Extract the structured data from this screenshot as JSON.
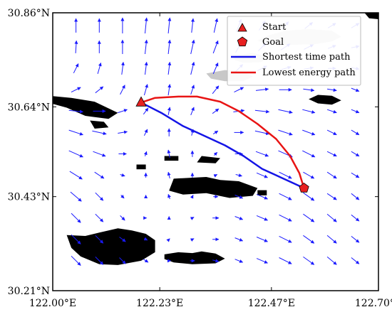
{
  "chart_data": {
    "type": "map",
    "xlim": [
      122.0,
      122.7
    ],
    "ylim": [
      30.21,
      30.86
    ],
    "x_ticks": [
      122.0,
      122.23,
      122.47,
      122.7
    ],
    "x_tick_labels": [
      "122.00°E",
      "122.23°E",
      "122.47°E",
      "122.70°E"
    ],
    "y_ticks": [
      30.21,
      30.43,
      30.64,
      30.86
    ],
    "y_tick_labels": [
      "30.21°N",
      "30.43°N",
      "30.64°N",
      "30.86°N"
    ],
    "legend_position": "top-right",
    "start": {
      "label": "Start",
      "lon": 122.19,
      "lat": 30.65,
      "marker": "triangle",
      "color": "#e82020"
    },
    "goal": {
      "label": "Goal",
      "lon": 122.54,
      "lat": 30.45,
      "marker": "pentagon",
      "color": "#e82020"
    },
    "series": [
      {
        "name": "Shortest time path",
        "color": "#1414e6",
        "lon": [
          122.19,
          122.235,
          122.28,
          122.32,
          122.37,
          122.41,
          122.45,
          122.49,
          122.54
        ],
        "lat": [
          30.65,
          30.625,
          30.595,
          30.575,
          30.55,
          30.525,
          30.495,
          30.475,
          30.45
        ]
      },
      {
        "name": "Lowest energy path",
        "color": "#e81414",
        "lon": [
          122.19,
          122.22,
          122.27,
          122.31,
          122.36,
          122.4,
          122.44,
          122.48,
          122.51,
          122.53,
          122.54
        ],
        "lat": [
          30.65,
          30.661,
          30.664,
          30.664,
          30.652,
          30.63,
          30.6,
          30.565,
          30.525,
          30.485,
          30.45
        ]
      }
    ],
    "islands": [
      [
        [
          121.99,
          30.666
        ],
        [
          122.04,
          30.661
        ],
        [
          122.09,
          30.652
        ],
        [
          122.14,
          30.626
        ],
        [
          122.12,
          30.612
        ],
        [
          122.07,
          30.619
        ],
        [
          122.03,
          30.638
        ],
        [
          121.99,
          30.65
        ]
      ],
      [
        [
          122.08,
          30.608
        ],
        [
          122.11,
          30.605
        ],
        [
          122.12,
          30.592
        ],
        [
          122.09,
          30.589
        ]
      ],
      [
        [
          122.18,
          30.505
        ],
        [
          122.2,
          30.505
        ],
        [
          122.2,
          30.494
        ],
        [
          122.18,
          30.494
        ]
      ],
      [
        [
          122.24,
          30.525
        ],
        [
          122.27,
          30.525
        ],
        [
          122.27,
          30.514
        ],
        [
          122.24,
          30.514
        ]
      ],
      [
        [
          122.32,
          30.525
        ],
        [
          122.36,
          30.52
        ],
        [
          122.35,
          30.508
        ],
        [
          122.31,
          30.51
        ]
      ],
      [
        [
          122.26,
          30.472
        ],
        [
          122.33,
          30.476
        ],
        [
          122.36,
          30.469
        ],
        [
          122.4,
          30.466
        ],
        [
          122.44,
          30.45
        ],
        [
          122.43,
          30.432
        ],
        [
          122.38,
          30.427
        ],
        [
          122.33,
          30.438
        ],
        [
          122.28,
          30.435
        ],
        [
          122.25,
          30.444
        ]
      ],
      [
        [
          122.44,
          30.445
        ],
        [
          122.46,
          30.445
        ],
        [
          122.46,
          30.433
        ],
        [
          122.44,
          30.433
        ]
      ],
      [
        [
          122.03,
          30.34
        ],
        [
          122.07,
          30.338
        ],
        [
          122.1,
          30.346
        ],
        [
          122.14,
          30.356
        ],
        [
          122.17,
          30.351
        ],
        [
          122.2,
          30.343
        ],
        [
          122.22,
          30.328
        ],
        [
          122.22,
          30.3
        ],
        [
          122.19,
          30.28
        ],
        [
          122.14,
          30.27
        ],
        [
          122.1,
          30.272
        ],
        [
          122.06,
          30.29
        ],
        [
          122.04,
          30.31
        ]
      ],
      [
        [
          122.24,
          30.295
        ],
        [
          122.27,
          30.3
        ],
        [
          122.3,
          30.298
        ],
        [
          122.32,
          30.302
        ],
        [
          122.35,
          30.297
        ],
        [
          122.37,
          30.285
        ],
        [
          122.35,
          30.274
        ],
        [
          122.3,
          30.272
        ],
        [
          122.26,
          30.276
        ],
        [
          122.24,
          30.284
        ]
      ],
      [
        [
          122.55,
          30.658
        ],
        [
          122.57,
          30.668
        ],
        [
          122.6,
          30.666
        ],
        [
          122.62,
          30.655
        ],
        [
          122.6,
          30.645
        ],
        [
          122.57,
          30.648
        ]
      ],
      [
        [
          122.67,
          30.86
        ],
        [
          122.7,
          30.86
        ],
        [
          122.7,
          30.845
        ],
        [
          122.68,
          30.847
        ]
      ]
    ],
    "shoals": [
      [
        [
          122.44,
          30.795
        ],
        [
          122.46,
          30.806
        ],
        [
          122.5,
          30.818
        ],
        [
          122.55,
          30.822
        ],
        [
          122.6,
          30.818
        ],
        [
          122.62,
          30.804
        ],
        [
          122.6,
          30.793
        ],
        [
          122.56,
          30.786
        ],
        [
          122.5,
          30.785
        ],
        [
          122.46,
          30.788
        ]
      ],
      [
        [
          122.39,
          30.76
        ],
        [
          122.43,
          30.766
        ],
        [
          122.46,
          30.758
        ],
        [
          122.45,
          30.745
        ],
        [
          122.41,
          30.743
        ],
        [
          122.39,
          30.75
        ]
      ],
      [
        [
          122.33,
          30.718
        ],
        [
          122.37,
          30.726
        ],
        [
          122.41,
          30.722
        ],
        [
          122.43,
          30.711
        ],
        [
          122.41,
          30.7
        ],
        [
          122.37,
          30.7
        ],
        [
          122.34,
          30.706
        ]
      ]
    ],
    "current_field": {
      "lon_start": 122.05,
      "lon_step": 0.05,
      "lon_count": 13,
      "lat_start": 30.83,
      "lat_step": -0.05,
      "lat_count": 12,
      "u": [
        [
          0.0,
          0.0,
          0.0,
          0.1,
          0.1,
          0.1,
          0.2,
          0.3,
          0.4,
          0.4,
          0.5,
          0.5,
          0.5
        ],
        [
          0.05,
          0.0,
          0.0,
          0.1,
          0.1,
          0.2,
          0.3,
          0.4,
          0.5,
          0.6,
          0.6,
          0.5,
          0.5
        ],
        [
          0.3,
          0.2,
          0.1,
          0.1,
          0.1,
          0.2,
          0.3,
          0.5,
          0.6,
          0.7,
          0.6,
          0.5,
          0.5
        ],
        [
          0.6,
          0.5,
          0.3,
          0.2,
          0.1,
          0.2,
          0.4,
          0.6,
          0.8,
          0.8,
          0.7,
          0.6,
          0.5
        ],
        [
          0.9,
          0.8,
          0.6,
          0.3,
          0.1,
          0.2,
          0.4,
          0.7,
          0.9,
          0.9,
          0.8,
          0.6,
          0.5
        ],
        [
          0.9,
          0.9,
          0.6,
          0.2,
          0.0,
          0.1,
          0.3,
          0.6,
          0.9,
          0.9,
          0.8,
          0.6,
          0.5
        ],
        [
          0.9,
          0.8,
          0.5,
          0.1,
          -0.1,
          0.0,
          0.2,
          0.5,
          0.8,
          0.9,
          0.8,
          0.6,
          0.5
        ],
        [
          0.8,
          0.6,
          0.3,
          0.0,
          -0.1,
          0.0,
          0.2,
          0.4,
          0.7,
          0.8,
          0.7,
          0.6,
          0.5
        ],
        [
          0.7,
          0.5,
          0.2,
          0.0,
          -0.1,
          0.1,
          0.3,
          0.5,
          0.7,
          0.8,
          0.7,
          0.6,
          0.5
        ],
        [
          0.6,
          0.5,
          0.3,
          0.1,
          0.0,
          0.2,
          0.4,
          0.5,
          0.7,
          0.8,
          0.7,
          0.6,
          0.5
        ],
        [
          0.6,
          0.5,
          0.4,
          0.2,
          0.1,
          0.2,
          0.4,
          0.5,
          0.7,
          0.8,
          0.7,
          0.6,
          0.5
        ],
        [
          0.6,
          0.5,
          0.4,
          0.3,
          0.2,
          0.3,
          0.4,
          0.5,
          0.7,
          0.8,
          0.7,
          0.6,
          0.5
        ]
      ],
      "v": [
        [
          0.9,
          0.9,
          1.0,
          1.0,
          1.0,
          0.9,
          0.9,
          0.8,
          0.6,
          0.5,
          0.4,
          0.3,
          0.3
        ],
        [
          0.8,
          0.8,
          0.9,
          0.9,
          0.9,
          0.9,
          0.8,
          0.7,
          0.5,
          0.4,
          0.3,
          0.2,
          0.1
        ],
        [
          0.6,
          0.7,
          0.8,
          0.8,
          0.8,
          0.8,
          0.7,
          0.5,
          0.3,
          0.2,
          0.1,
          0.0,
          -0.1
        ],
        [
          0.3,
          0.4,
          0.6,
          0.7,
          0.7,
          0.6,
          0.5,
          0.3,
          0.1,
          0.0,
          -0.1,
          -0.1,
          -0.2
        ],
        [
          -0.1,
          0.0,
          0.2,
          0.4,
          0.5,
          0.5,
          0.3,
          0.1,
          -0.1,
          -0.2,
          -0.2,
          -0.2,
          -0.2
        ],
        [
          -0.3,
          -0.2,
          0.1,
          0.4,
          0.5,
          0.4,
          0.2,
          0.0,
          -0.2,
          -0.3,
          -0.3,
          -0.3,
          -0.3
        ],
        [
          -0.4,
          -0.3,
          0.0,
          0.3,
          0.5,
          0.4,
          0.2,
          0.0,
          -0.3,
          -0.4,
          -0.4,
          -0.3,
          -0.3
        ],
        [
          -0.5,
          -0.4,
          -0.1,
          0.3,
          0.4,
          0.3,
          0.1,
          -0.1,
          -0.3,
          -0.4,
          -0.4,
          -0.4,
          -0.3
        ],
        [
          -0.6,
          -0.5,
          -0.2,
          0.2,
          0.3,
          0.2,
          0.0,
          -0.2,
          -0.3,
          -0.4,
          -0.5,
          -0.4,
          -0.4
        ],
        [
          -0.6,
          -0.5,
          -0.3,
          0.0,
          0.2,
          0.1,
          0.0,
          -0.2,
          -0.3,
          -0.4,
          -0.5,
          -0.5,
          -0.4
        ],
        [
          -0.6,
          -0.5,
          -0.3,
          -0.1,
          0.1,
          0.1,
          0.0,
          -0.2,
          -0.3,
          -0.4,
          -0.5,
          -0.5,
          -0.4
        ],
        [
          -0.6,
          -0.5,
          -0.4,
          -0.2,
          0.0,
          0.0,
          -0.1,
          -0.2,
          -0.3,
          -0.4,
          -0.5,
          -0.5,
          -0.4
        ]
      ],
      "color": "#1a1aff"
    }
  }
}
